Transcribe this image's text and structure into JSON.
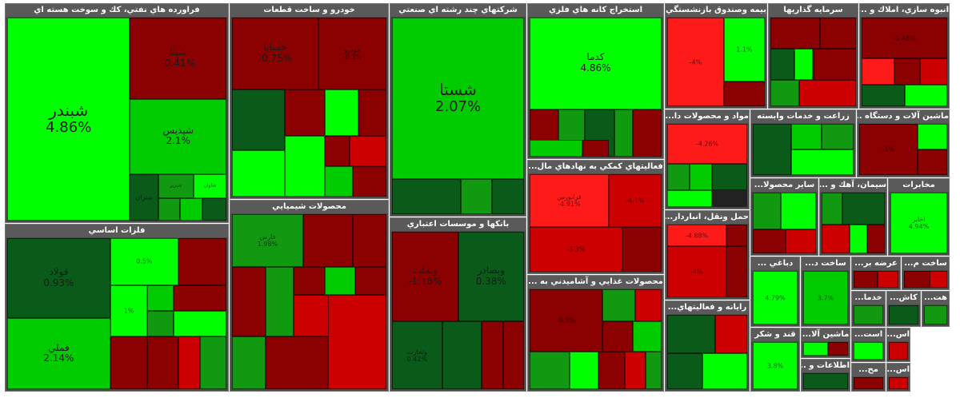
{
  "colors": {
    "bright_green": "#00ff00",
    "green": "#00cc00",
    "mid_green": "#119911",
    "dark_green": "#0a5a1a",
    "dark_red": "#8b0000",
    "red": "#cc0000",
    "bright_red": "#ff1a1a"
  },
  "sectors": [
    {
      "id": "s1",
      "title": "فراورده هاي نفتي، كك و سوخت هسته اي",
      "tiles": [
        {
          "sym": "شبندر",
          "chg": "4.86%",
          "color": "bright_green"
        },
        {
          "sym": "شپنا",
          "chg": "-0.41%",
          "color": "dark_red"
        },
        {
          "sym": "شپديس",
          "chg": "2.1%",
          "color": "green"
        },
        {
          "sym": "شتران",
          "chg": "",
          "color": "dark_green"
        },
        {
          "sym": "شبريز",
          "chg": "",
          "color": "mid_green"
        },
        {
          "sym": "شاوان",
          "chg": "",
          "color": "bright_green"
        },
        {
          "sym": "",
          "chg": "",
          "color": "mid_green"
        },
        {
          "sym": "",
          "chg": "",
          "color": "green"
        },
        {
          "sym": "",
          "chg": "",
          "color": "dark_green"
        }
      ]
    },
    {
      "id": "s2",
      "title": "فلزات اساسي",
      "tiles": [
        {
          "sym": "فولاد",
          "chg": "0.93%",
          "color": "dark_green"
        },
        {
          "sym": "فملي",
          "chg": "2.14%",
          "color": "green"
        },
        {
          "sym": "",
          "chg": "0.5%",
          "color": "bright_green"
        },
        {
          "sym": "",
          "chg": "",
          "color": "dark_red"
        },
        {
          "sym": "",
          "chg": "1%",
          "color": "bright_green"
        },
        {
          "sym": "",
          "chg": "",
          "color": "green"
        },
        {
          "sym": "",
          "chg": "",
          "color": "dark_red"
        },
        {
          "sym": "",
          "chg": "",
          "color": "mid_green"
        },
        {
          "sym": "",
          "chg": "",
          "color": "bright_green"
        },
        {
          "sym": "",
          "chg": "",
          "color": "dark_red"
        },
        {
          "sym": "",
          "chg": "",
          "color": "dark_red"
        },
        {
          "sym": "",
          "chg": "",
          "color": "red"
        },
        {
          "sym": "",
          "chg": "",
          "color": "mid_green"
        }
      ]
    },
    {
      "id": "s3",
      "title": "خودرو و ساخت قطعات",
      "tiles": [
        {
          "sym": "خساپا",
          "chg": "-0.75%",
          "color": "dark_red"
        },
        {
          "sym": "خودرو",
          "chg": "-0.3%",
          "color": "dark_red"
        },
        {
          "sym": "",
          "chg": "",
          "color": "dark_green"
        },
        {
          "sym": "",
          "chg": "",
          "color": "dark_red"
        },
        {
          "sym": "",
          "chg": "",
          "color": "bright_green"
        },
        {
          "sym": "",
          "chg": "",
          "color": "dark_red"
        },
        {
          "sym": "",
          "chg": "",
          "color": "bright_green"
        },
        {
          "sym": "",
          "chg": "",
          "color": "bright_green"
        },
        {
          "sym": "",
          "chg": "",
          "color": "dark_red"
        },
        {
          "sym": "",
          "chg": "",
          "color": "red"
        },
        {
          "sym": "",
          "chg": "",
          "color": "green"
        },
        {
          "sym": "",
          "chg": "",
          "color": "dark_red"
        }
      ]
    },
    {
      "id": "s4",
      "title": "محصولات شيميايي",
      "tiles": [
        {
          "sym": "فارس",
          "chg": "1.98%",
          "color": "mid_green"
        },
        {
          "sym": "",
          "chg": "",
          "color": "dark_red"
        },
        {
          "sym": "",
          "chg": "",
          "color": "dark_red"
        },
        {
          "sym": "",
          "chg": "",
          "color": "dark_red"
        },
        {
          "sym": "",
          "chg": "",
          "color": "mid_green"
        },
        {
          "sym": "",
          "chg": "",
          "color": "dark_red"
        },
        {
          "sym": "",
          "chg": "",
          "color": "green"
        },
        {
          "sym": "",
          "chg": "",
          "color": "dark_red"
        },
        {
          "sym": "",
          "chg": "",
          "color": "red"
        },
        {
          "sym": "",
          "chg": "",
          "color": "mid_green"
        },
        {
          "sym": "",
          "chg": "",
          "color": "dark_red"
        },
        {
          "sym": "",
          "chg": "",
          "color": "red"
        }
      ]
    },
    {
      "id": "s5",
      "title": "شركتهاي چند رشته اي صنعتي",
      "tiles": [
        {
          "sym": "شستا",
          "chg": "2.07%",
          "color": "green"
        },
        {
          "sym": "",
          "chg": "",
          "color": "dark_green"
        },
        {
          "sym": "",
          "chg": "",
          "color": "mid_green"
        },
        {
          "sym": "",
          "chg": "",
          "color": "dark_green"
        }
      ]
    },
    {
      "id": "s6",
      "title": "بانكها و موسسات اعتباري",
      "tiles": [
        {
          "sym": "وبملت",
          "chg": "-1.18%",
          "color": "dark_red"
        },
        {
          "sym": "وبصادر",
          "chg": "0.38%",
          "color": "dark_green"
        },
        {
          "sym": "وتجارت",
          "chg": "0.42%",
          "color": "dark_green"
        },
        {
          "sym": "",
          "chg": "",
          "color": "dark_green"
        },
        {
          "sym": "",
          "chg": "",
          "color": "dark_red"
        },
        {
          "sym": "",
          "chg": "",
          "color": "dark_red"
        }
      ]
    },
    {
      "id": "s7",
      "title": "استخراج كانه هاي فلزي",
      "tiles": [
        {
          "sym": "كدما",
          "chg": "4.86%",
          "color": "bright_green"
        },
        {
          "sym": "",
          "chg": "",
          "color": "dark_red"
        },
        {
          "sym": "",
          "chg": "",
          "color": "mid_green"
        },
        {
          "sym": "",
          "chg": "",
          "color": "dark_green"
        },
        {
          "sym": "",
          "chg": "",
          "color": "mid_green"
        },
        {
          "sym": "",
          "chg": "",
          "color": "dark_red"
        },
        {
          "sym": "",
          "chg": "",
          "color": "green"
        },
        {
          "sym": "",
          "chg": "",
          "color": "dark_red"
        }
      ]
    },
    {
      "id": "s8",
      "title": "فعاليتهاي كمكي به نهادهاي مال...",
      "tiles": [
        {
          "sym": "فرابورس",
          "chg": "-4.91%",
          "color": "bright_red"
        },
        {
          "sym": "",
          "chg": "-4.1%",
          "color": "red"
        },
        {
          "sym": "",
          "chg": "-3.3%",
          "color": "red"
        },
        {
          "sym": "",
          "chg": "",
          "color": "dark_red"
        }
      ]
    },
    {
      "id": "s9",
      "title": "محصولات غذايي و آشاميدني به ...",
      "tiles": [
        {
          "sym": "",
          "chg": "-0.9%",
          "color": "dark_red"
        },
        {
          "sym": "",
          "chg": "",
          "color": "mid_green"
        },
        {
          "sym": "",
          "chg": "",
          "color": "red"
        },
        {
          "sym": "",
          "chg": "",
          "color": "dark_red"
        },
        {
          "sym": "",
          "chg": "",
          "color": "green"
        },
        {
          "sym": "",
          "chg": "",
          "color": "mid_green"
        },
        {
          "sym": "",
          "chg": "",
          "color": "bright_green"
        },
        {
          "sym": "",
          "chg": "",
          "color": "dark_red"
        },
        {
          "sym": "",
          "chg": "",
          "color": "red"
        },
        {
          "sym": "",
          "chg": "",
          "color": "mid_green"
        }
      ]
    },
    {
      "id": "s10",
      "title": "بيمه وصندوق بازنشستگي ...",
      "tiles": [
        {
          "sym": "",
          "chg": "-4%",
          "color": "bright_red"
        },
        {
          "sym": "",
          "chg": "1.1%",
          "color": "bright_green"
        },
        {
          "sym": "",
          "chg": "",
          "color": "dark_red"
        }
      ]
    },
    {
      "id": "s11",
      "title": "سرمايه گذاريها",
      "tiles": [
        {
          "sym": "",
          "chg": "",
          "color": "dark_red"
        },
        {
          "sym": "",
          "chg": "",
          "color": "dark_red"
        },
        {
          "sym": "",
          "chg": "",
          "color": "dark_green"
        },
        {
          "sym": "",
          "chg": "",
          "color": "bright_green"
        },
        {
          "sym": "",
          "chg": "",
          "color": "dark_red"
        },
        {
          "sym": "",
          "chg": "",
          "color": "mid_green"
        },
        {
          "sym": "",
          "chg": "",
          "color": "red"
        }
      ]
    },
    {
      "id": "s12",
      "title": "انبوه سازي، املاك و ...",
      "tiles": [
        {
          "sym": "",
          "chg": "-1.46%",
          "color": "dark_red"
        },
        {
          "sym": "",
          "chg": "",
          "color": "bright_red"
        },
        {
          "sym": "",
          "chg": "",
          "color": "dark_red"
        },
        {
          "sym": "",
          "chg": "",
          "color": "red"
        },
        {
          "sym": "",
          "chg": "",
          "color": "dark_green"
        },
        {
          "sym": "",
          "chg": "",
          "color": "bright_green"
        }
      ]
    },
    {
      "id": "s13",
      "title": "مواد و محصولات دا...",
      "tiles": [
        {
          "sym": "",
          "chg": "-4.26%",
          "color": "bright_red"
        },
        {
          "sym": "",
          "chg": "",
          "color": "mid_green"
        },
        {
          "sym": "",
          "chg": "",
          "color": "green"
        },
        {
          "sym": "",
          "chg": "",
          "color": "dark_green"
        },
        {
          "sym": "",
          "chg": "",
          "color": "bright_green"
        }
      ]
    },
    {
      "id": "s14",
      "title": "زراعت و خدمات وابسته",
      "tiles": [
        {
          "sym": "",
          "chg": "",
          "color": "dark_green"
        },
        {
          "sym": "",
          "chg": "",
          "color": "green"
        },
        {
          "sym": "",
          "chg": "",
          "color": "mid_green"
        },
        {
          "sym": "",
          "chg": "",
          "color": "bright_green"
        }
      ]
    },
    {
      "id": "s15",
      "title": "ماشين آلات و دستگاه ...",
      "tiles": [
        {
          "sym": "",
          "chg": "-1%",
          "color": "dark_red"
        },
        {
          "sym": "",
          "chg": "",
          "color": "bright_green"
        },
        {
          "sym": "",
          "chg": "",
          "color": "dark_red"
        }
      ]
    },
    {
      "id": "s16",
      "title": "حمل ونقل، انباردار...",
      "tiles": [
        {
          "sym": "",
          "chg": "-4.88%",
          "color": "bright_red"
        },
        {
          "sym": "",
          "chg": "",
          "color": "dark_red"
        },
        {
          "sym": "",
          "chg": "-4%",
          "color": "red"
        },
        {
          "sym": "",
          "chg": "",
          "color": "dark_red"
        }
      ]
    },
    {
      "id": "s17",
      "title": "سيمان، آهك و ...",
      "tiles": [
        {
          "sym": "",
          "chg": "",
          "color": "mid_green"
        },
        {
          "sym": "",
          "chg": "",
          "color": "dark_green"
        },
        {
          "sym": "",
          "chg": "",
          "color": "red"
        },
        {
          "sym": "",
          "chg": "",
          "color": "bright_green"
        },
        {
          "sym": "",
          "chg": "",
          "color": "dark_red"
        }
      ]
    },
    {
      "id": "s18",
      "title": "ساير محصولا...",
      "tiles": [
        {
          "sym": "",
          "chg": "",
          "color": "mid_green"
        },
        {
          "sym": "",
          "chg": "",
          "color": "bright_green"
        },
        {
          "sym": "",
          "chg": "",
          "color": "dark_red"
        },
        {
          "sym": "",
          "chg": "",
          "color": "red"
        }
      ]
    },
    {
      "id": "s19",
      "title": "مخابرات",
      "tiles": [
        {
          "sym": "اخابر",
          "chg": "4.94%",
          "color": "bright_green"
        }
      ]
    },
    {
      "id": "s20",
      "title": "رايانه و فعاليتهاي...",
      "tiles": [
        {
          "sym": "",
          "chg": "",
          "color": "dark_green"
        },
        {
          "sym": "",
          "chg": "",
          "color": "red"
        },
        {
          "sym": "",
          "chg": "",
          "color": "dark_green"
        },
        {
          "sym": "",
          "chg": "",
          "color": "bright_green"
        }
      ]
    },
    {
      "id": "s21",
      "title": "دباغي ...",
      "tiles": [
        {
          "sym": "",
          "chg": "4.79%",
          "color": "bright_green"
        }
      ]
    },
    {
      "id": "s22",
      "title": "ساخت د...",
      "tiles": [
        {
          "sym": "",
          "chg": "3.7%",
          "color": "green"
        }
      ]
    },
    {
      "id": "s23",
      "title": "عرضه بر...",
      "tiles": [
        {
          "sym": "",
          "chg": "",
          "color": "dark_red"
        },
        {
          "sym": "",
          "chg": "",
          "color": "red"
        }
      ]
    },
    {
      "id": "s24",
      "title": "ساخت م...",
      "tiles": [
        {
          "sym": "",
          "chg": "",
          "color": "dark_red"
        },
        {
          "sym": "",
          "chg": "",
          "color": "red"
        }
      ]
    },
    {
      "id": "s25",
      "title": "خدما...",
      "tiles": [
        {
          "sym": "",
          "chg": "",
          "color": "mid_green"
        }
      ]
    },
    {
      "id": "s26",
      "title": "كاش...",
      "tiles": [
        {
          "sym": "",
          "chg": "",
          "color": "dark_green"
        }
      ]
    },
    {
      "id": "s27",
      "title": "هت...",
      "tiles": [
        {
          "sym": "",
          "chg": "",
          "color": "mid_green"
        }
      ]
    },
    {
      "id": "s28",
      "title": "ماشين آلا...",
      "tiles": [
        {
          "sym": "",
          "chg": "",
          "color": "bright_green"
        },
        {
          "sym": "",
          "chg": "",
          "color": "dark_red"
        }
      ]
    },
    {
      "id": "s29",
      "title": "قند و شكر",
      "tiles": [
        {
          "sym": "",
          "chg": "3.8%",
          "color": "bright_green"
        }
      ]
    },
    {
      "id": "s30",
      "title": "است...",
      "tiles": [
        {
          "sym": "",
          "chg": "",
          "color": "bright_green"
        }
      ]
    },
    {
      "id": "s31",
      "title": "اس...",
      "tiles": [
        {
          "sym": "",
          "chg": "",
          "color": "red"
        }
      ]
    },
    {
      "id": "s32",
      "title": "اطلاعات و ...",
      "tiles": [
        {
          "sym": "",
          "chg": "",
          "color": "dark_green"
        }
      ]
    },
    {
      "id": "s33",
      "title": "مح...",
      "tiles": [
        {
          "sym": "",
          "chg": "",
          "color": "dark_red"
        }
      ]
    },
    {
      "id": "s34",
      "title": "اس...",
      "tiles": [
        {
          "sym": "",
          "chg": "",
          "color": "red"
        }
      ]
    }
  ]
}
